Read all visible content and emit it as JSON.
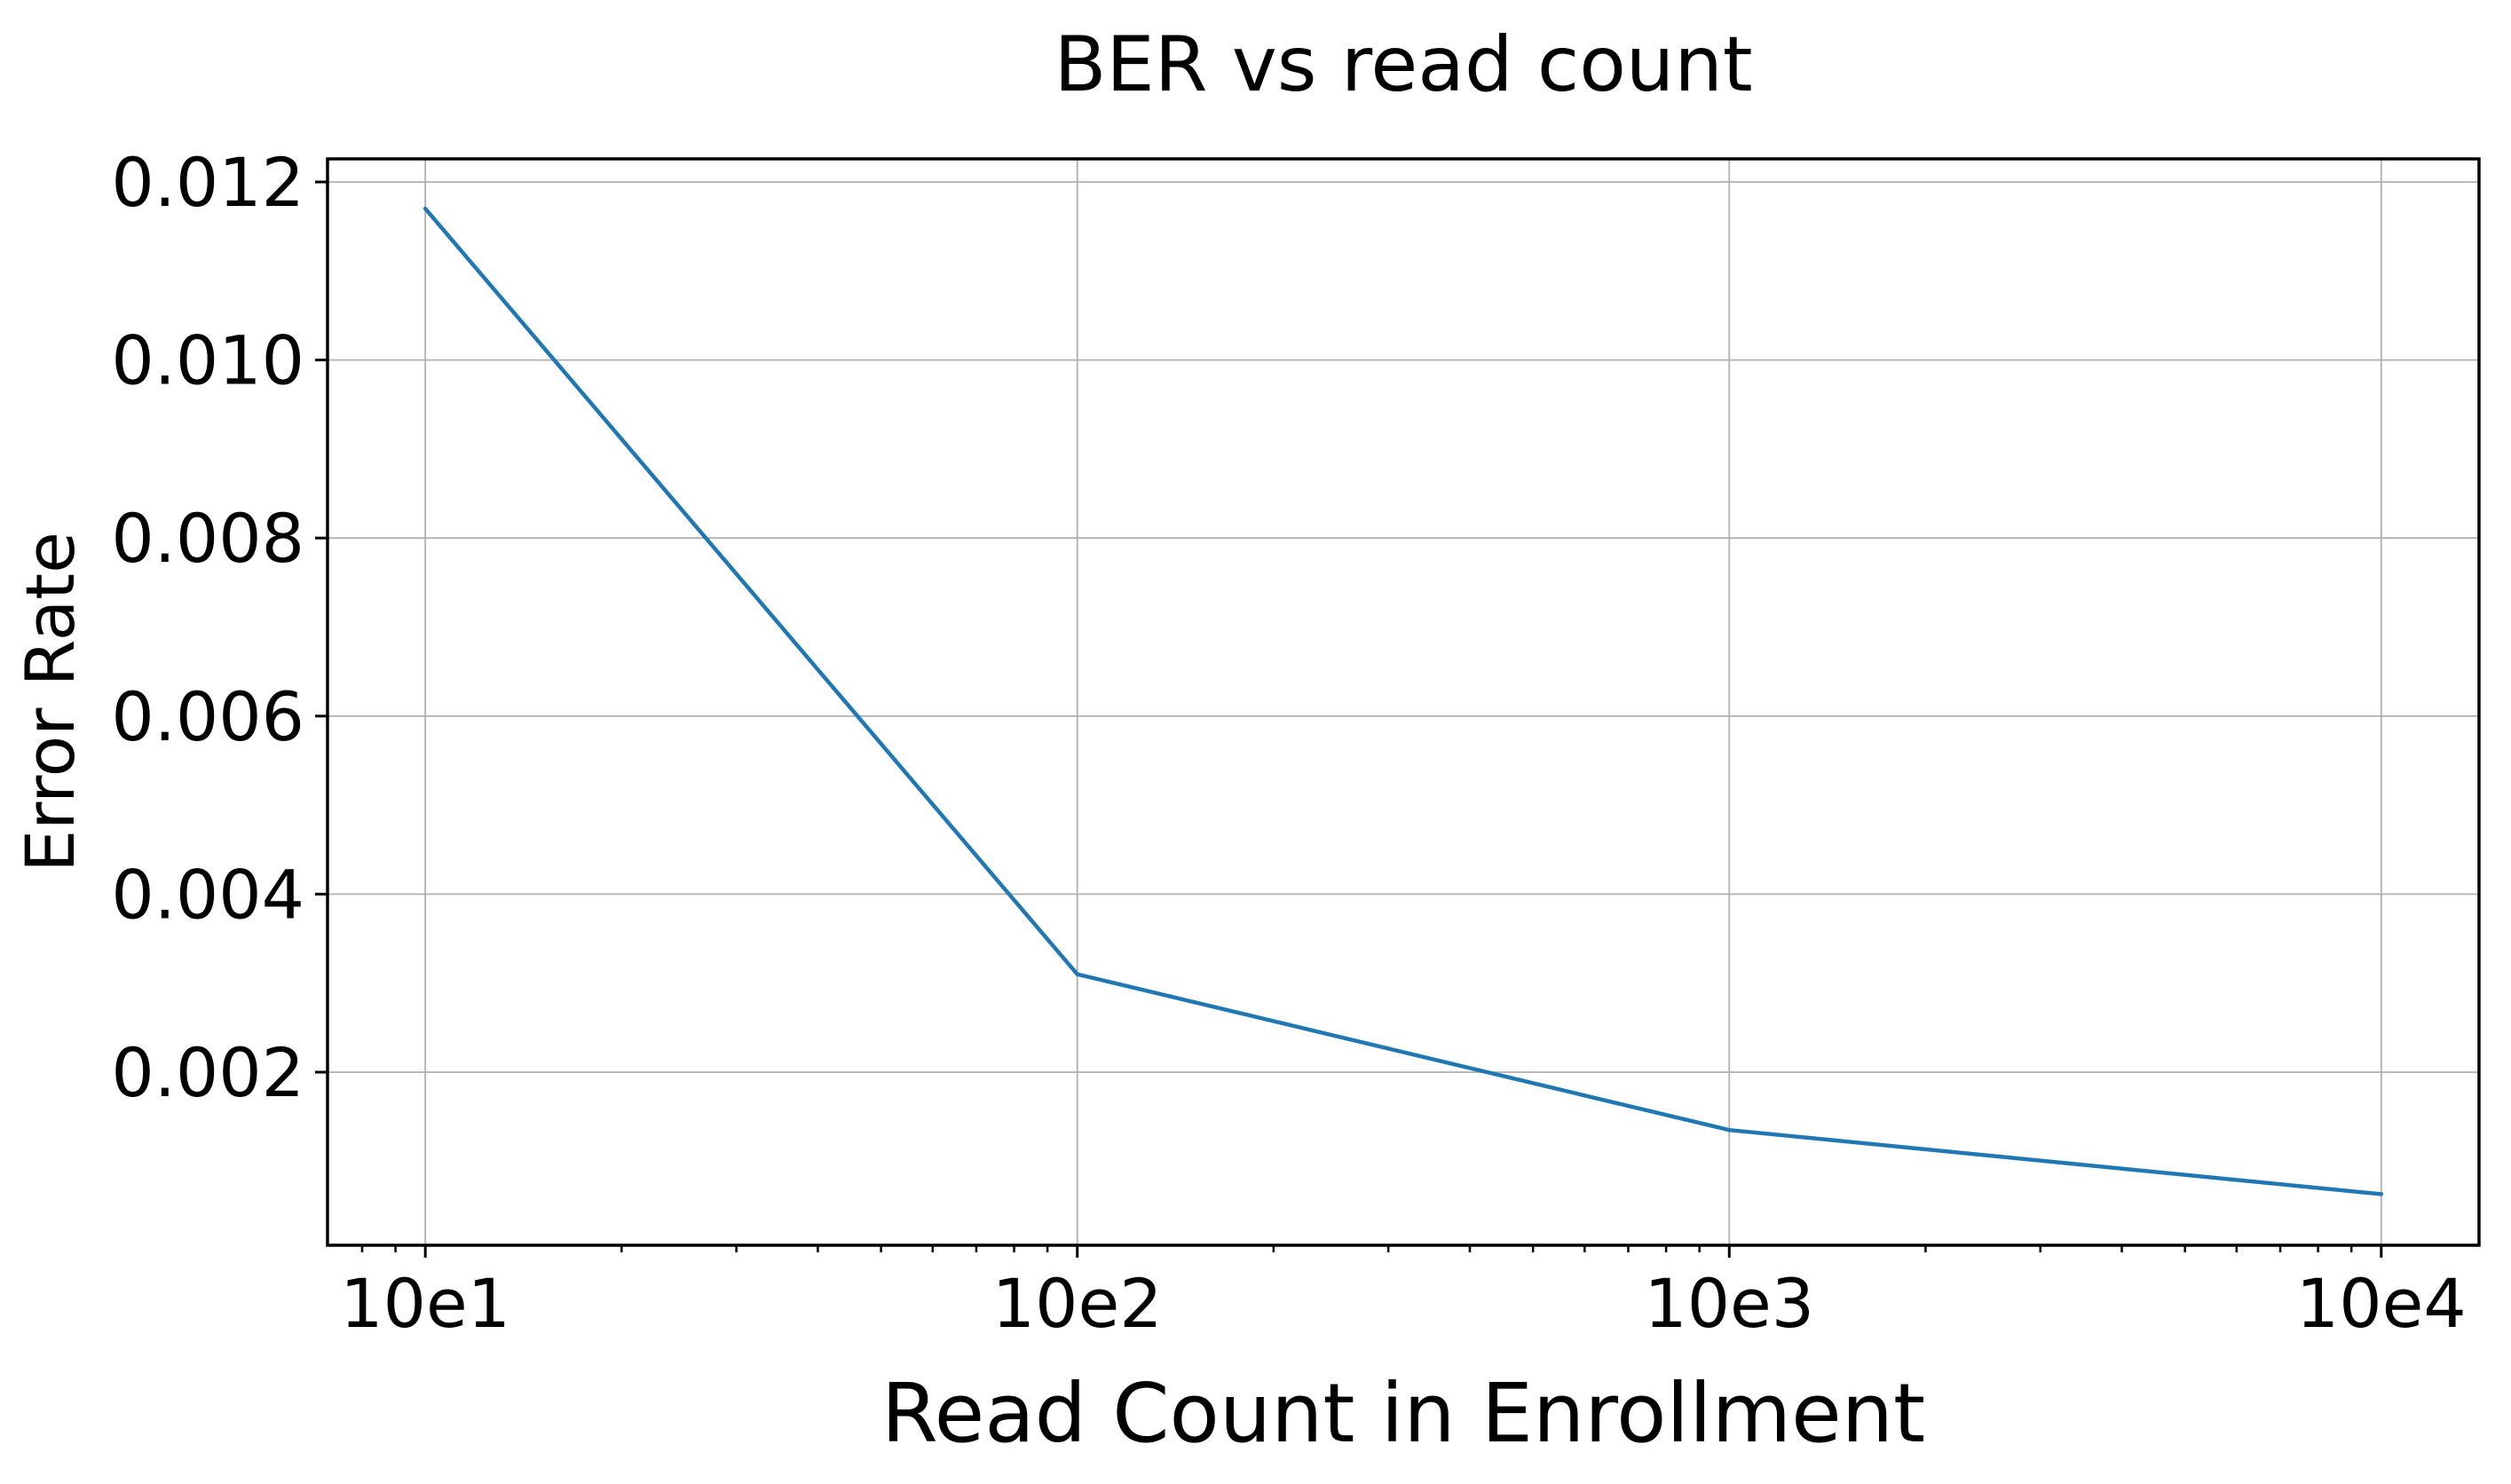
{
  "chart_data": {
    "type": "line",
    "title": "BER vs read count",
    "xlabel": "Read Count in Enrollment",
    "ylabel": "Error Rate",
    "x": [
      10,
      100,
      1000,
      10000
    ],
    "series": [
      {
        "name": "BER",
        "values": [
          0.0117,
          0.0031,
          0.00135,
          0.00063
        ]
      }
    ],
    "xscale": "log",
    "yscale": "linear",
    "xlim": [
      7.0795,
      14125.4
    ],
    "ylim": [
      5.58e-05,
      0.0122592
    ],
    "xticks": [
      10,
      100,
      1000,
      10000
    ],
    "xtick_labels": [
      "10e1",
      "10e2",
      "10e3",
      "10e4"
    ],
    "yticks": [
      0.002,
      0.004,
      0.006,
      0.008,
      0.01,
      0.012
    ],
    "ytick_labels": [
      "0.002",
      "0.004",
      "0.006",
      "0.008",
      "0.010",
      "0.012"
    ],
    "grid": true,
    "legend_position": "none",
    "colors": {
      "line": "#1f77b4",
      "grid": "#b0b0b0",
      "spine": "#000000",
      "background": "#ffffff"
    }
  }
}
